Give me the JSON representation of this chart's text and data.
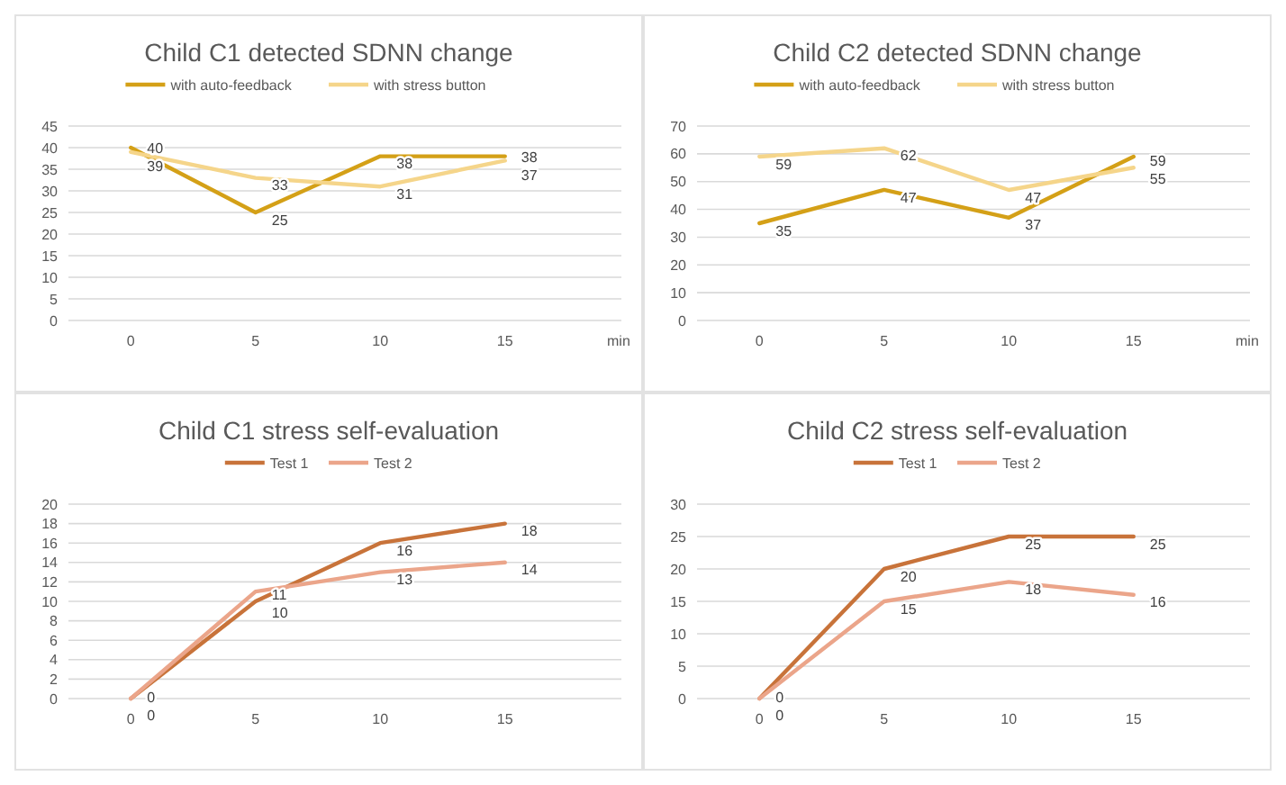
{
  "chart_data": [
    {
      "type": "line",
      "title": "Child C1 detected SDNN change",
      "categories": [
        "0",
        "5",
        "10",
        "15"
      ],
      "xlabel": "min",
      "ylim": [
        0,
        45
      ],
      "yticks": [
        0,
        5,
        10,
        15,
        20,
        25,
        30,
        35,
        40,
        45
      ],
      "grid": "y",
      "legend": "top",
      "data_labels": true,
      "series": [
        {
          "name": "with auto-feedback",
          "color": "#d4a017",
          "values": [
            40,
            25,
            38,
            38
          ]
        },
        {
          "name": "with stress button",
          "color": "#f5d58a",
          "values": [
            39,
            33,
            31,
            37
          ]
        }
      ]
    },
    {
      "type": "line",
      "title": "Child C2 detected SDNN change",
      "categories": [
        "0",
        "5",
        "10",
        "15"
      ],
      "xlabel": "min",
      "ylim": [
        0,
        70
      ],
      "yticks": [
        0,
        10,
        20,
        30,
        40,
        50,
        60,
        70
      ],
      "grid": "y",
      "legend": "top",
      "data_labels": true,
      "series": [
        {
          "name": "with auto-feedback",
          "color": "#d4a017",
          "values": [
            35,
            47,
            37,
            59
          ]
        },
        {
          "name": "with stress button",
          "color": "#f5d58a",
          "values": [
            59,
            62,
            47,
            55
          ]
        }
      ]
    },
    {
      "type": "line",
      "title": "Child C1 stress self-evaluation",
      "categories": [
        "0",
        "5",
        "10",
        "15"
      ],
      "ylim": [
        0,
        20
      ],
      "yticks": [
        0,
        2,
        4,
        6,
        8,
        10,
        12,
        14,
        16,
        18,
        20
      ],
      "grid": "y",
      "legend": "top",
      "data_labels": true,
      "series": [
        {
          "name": "Test 1",
          "color": "#c8733a",
          "values": [
            0,
            10,
            16,
            18
          ]
        },
        {
          "name": "Test 2",
          "color": "#eba58a",
          "values": [
            0,
            11,
            13,
            14
          ]
        }
      ]
    },
    {
      "type": "line",
      "title": "Child C2 stress self-evaluation",
      "categories": [
        "0",
        "5",
        "10",
        "15"
      ],
      "ylim": [
        0,
        30
      ],
      "yticks": [
        0,
        5,
        10,
        15,
        20,
        25,
        30
      ],
      "grid": "y",
      "legend": "top",
      "data_labels": true,
      "series": [
        {
          "name": "Test 1",
          "color": "#c8733a",
          "values": [
            0,
            20,
            25,
            25
          ]
        },
        {
          "name": "Test 2",
          "color": "#eba58a",
          "values": [
            0,
            15,
            18,
            16
          ]
        }
      ]
    }
  ]
}
